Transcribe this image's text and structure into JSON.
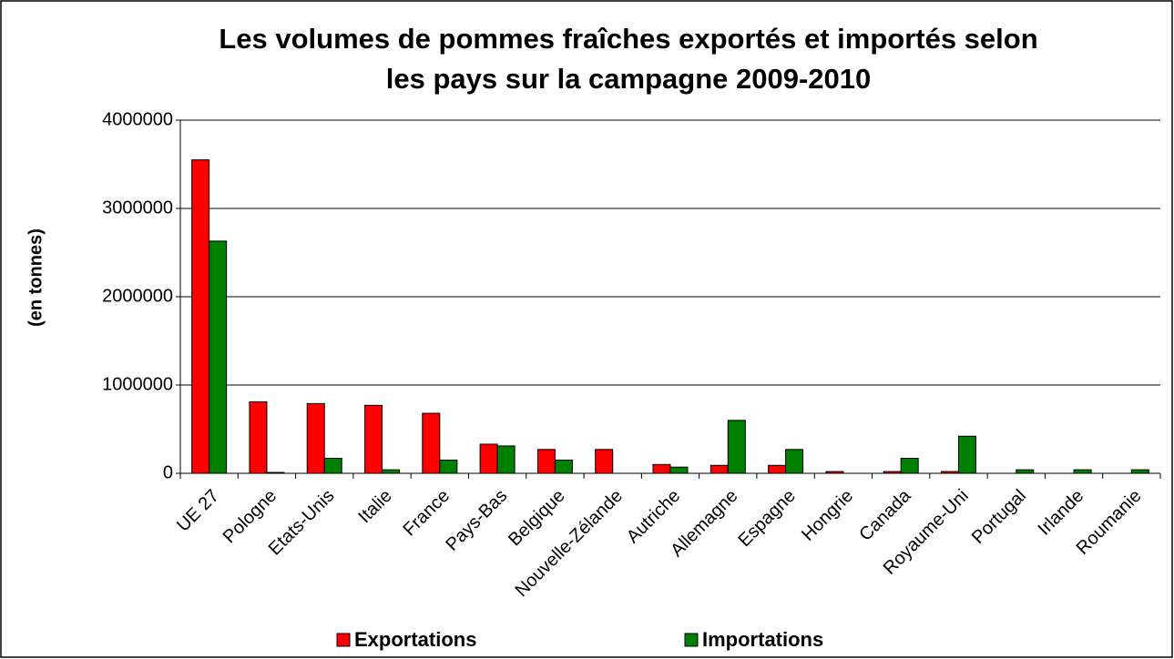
{
  "chart_data": {
    "type": "bar",
    "title": [
      "Les volumes de pommes fraîches exportés et importés selon",
      "les pays sur la campagne 2009-2010"
    ],
    "y_label": "(en tonnes)",
    "categories": [
      "UE 27",
      "Pologne",
      "Etats-Unis",
      "Italie",
      "France",
      "Pays-Bas",
      "Belgique",
      "Nouvelle-Zélande",
      "Autriche",
      "Allemagne",
      "Espagne",
      "Hongrie",
      "Canada",
      "Royaume-Uni",
      "Portugal",
      "Irlande",
      "Roumanie"
    ],
    "series": [
      {
        "name": "Exportations",
        "color": "#ff0000",
        "values": [
          3550000,
          810000,
          790000,
          770000,
          680000,
          330000,
          270000,
          270000,
          100000,
          90000,
          90000,
          20000,
          20000,
          20000,
          0,
          0,
          0
        ]
      },
      {
        "name": "Importations",
        "color": "#008000",
        "values": [
          2630000,
          10000,
          170000,
          40000,
          150000,
          310000,
          150000,
          0,
          70000,
          600000,
          270000,
          0,
          170000,
          420000,
          40000,
          40000,
          40000
        ]
      }
    ],
    "ylim": [
      0,
      4000000
    ],
    "yticks": [
      0,
      1000000,
      2000000,
      3000000,
      4000000
    ],
    "grid": true,
    "legend": "bottom"
  }
}
